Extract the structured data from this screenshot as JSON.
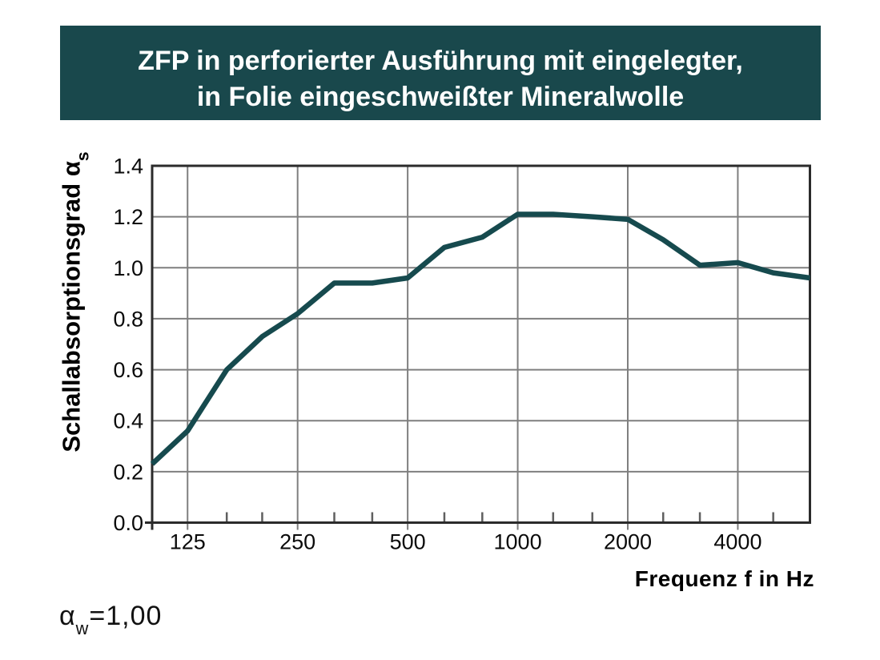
{
  "header": {
    "line1": "ZFP in perforierter Ausführung mit eingelegter,",
    "line2": "in Folie eingeschweißter Mineralwolle",
    "bg_color": "#19484c",
    "text_color": "#ffffff"
  },
  "chart_data": {
    "type": "line",
    "x": [
      100,
      125,
      160,
      200,
      250,
      315,
      400,
      500,
      630,
      800,
      1000,
      1250,
      1600,
      2000,
      2500,
      3150,
      4000,
      5000,
      6300
    ],
    "values": [
      0.23,
      0.36,
      0.6,
      0.73,
      0.82,
      0.94,
      0.94,
      0.96,
      1.08,
      1.12,
      1.21,
      1.21,
      1.2,
      1.19,
      1.11,
      1.01,
      1.02,
      0.98,
      0.96
    ],
    "x_scale": "log",
    "x_range": [
      100,
      6300
    ],
    "ylim": [
      0,
      1.4
    ],
    "y_tick_step": 0.2,
    "y_tick_labels": [
      "0.0",
      "0.2",
      "0.4",
      "0.6",
      "0.8",
      "1.0",
      "1.2",
      "1.4"
    ],
    "x_major_ticks": [
      125,
      250,
      500,
      1000,
      2000,
      4000
    ],
    "x_major_labels": [
      "125",
      "250",
      "500",
      "1000",
      "2000",
      "4000"
    ],
    "x_minor_ticks": [
      160,
      200,
      315,
      400,
      630,
      800,
      1250,
      1600,
      2500,
      3150,
      5000
    ],
    "ylabel": "Schallabsorptionsgrad",
    "ylabel_symbol": "α",
    "ylabel_sub": "s",
    "xlabel": "Frequenz f in Hz",
    "grid": true,
    "legend": false,
    "line_color": "#164a4e",
    "grid_color": "#7f7f7f",
    "frame_color": "#2b2b2b"
  },
  "annotation": {
    "alpha": "α",
    "sub": "w",
    "value": "=1,00"
  }
}
